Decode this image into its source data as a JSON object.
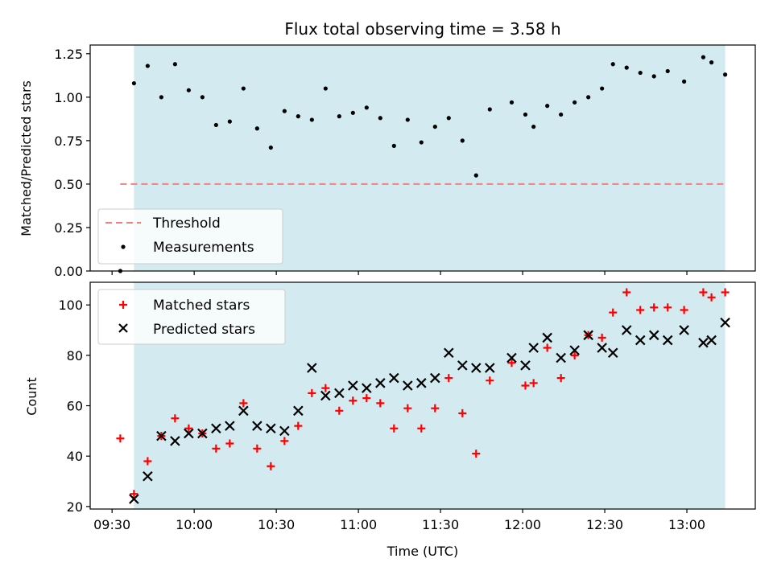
{
  "chart_data": [
    {
      "type": "scatter",
      "title": "Flux total observing time = 3.58 h",
      "xlabel": "",
      "ylabel": "Matched/Predicted stars",
      "ylim": [
        0,
        1.3
      ],
      "xlim": [
        "09:22",
        "13:25"
      ],
      "yticks": [
        "0.00",
        "0.25",
        "0.50",
        "0.75",
        "1.00",
        "1.25"
      ],
      "xticks": [
        "09:30",
        "10:00",
        "10:30",
        "11:00",
        "11:30",
        "12:00",
        "12:30",
        "13:00"
      ],
      "shaded_span": {
        "from": "09:38",
        "to": "13:14",
        "color": "#d2eaf0"
      },
      "threshold": {
        "name": "Threshold",
        "value": 0.5,
        "color": "#f08080",
        "from": "09:33",
        "to": "13:14"
      },
      "legend": [
        "Threshold",
        "Measurements"
      ],
      "legend_position": "lower left",
      "series": [
        {
          "name": "Measurements",
          "color": "#000000",
          "x": [
            "09:33",
            "09:38",
            "09:43",
            "09:48",
            "09:53",
            "09:58",
            "10:03",
            "10:08",
            "10:13",
            "10:18",
            "10:23",
            "10:28",
            "10:33",
            "10:38",
            "10:43",
            "10:48",
            "10:53",
            "10:58",
            "11:03",
            "11:08",
            "11:13",
            "11:18",
            "11:23",
            "11:28",
            "11:33",
            "11:38",
            "11:43",
            "11:48",
            "11:56",
            "12:01",
            "12:04",
            "12:09",
            "12:14",
            "12:19",
            "12:24",
            "12:29",
            "12:33",
            "12:38",
            "12:43",
            "12:48",
            "12:53",
            "12:59",
            "13:06",
            "13:09",
            "13:14"
          ],
          "y": [
            0.0,
            1.08,
            1.18,
            1.0,
            1.19,
            1.04,
            1.0,
            0.84,
            0.86,
            1.05,
            0.82,
            0.71,
            0.92,
            0.89,
            0.87,
            1.05,
            0.89,
            0.91,
            0.94,
            0.88,
            0.72,
            0.87,
            0.74,
            0.83,
            0.88,
            0.75,
            0.55,
            0.93,
            0.97,
            0.9,
            0.83,
            0.95,
            0.9,
            0.97,
            1.0,
            1.05,
            1.19,
            1.17,
            1.14,
            1.12,
            1.15,
            1.09,
            1.23,
            1.2,
            1.13
          ]
        }
      ]
    },
    {
      "type": "scatter",
      "title": "",
      "xlabel": "Time (UTC)",
      "ylabel": "Count",
      "ylim": [
        19,
        109
      ],
      "xlim": [
        "09:22",
        "13:25"
      ],
      "yticks": [
        "20",
        "40",
        "60",
        "80",
        "100"
      ],
      "xticks": [
        "09:30",
        "10:00",
        "10:30",
        "11:00",
        "11:30",
        "12:00",
        "12:30",
        "13:00"
      ],
      "shaded_span": {
        "from": "09:38",
        "to": "13:14",
        "color": "#d2eaf0"
      },
      "legend": [
        "Matched stars",
        "Predicted stars"
      ],
      "legend_position": "upper left",
      "series": [
        {
          "name": "Matched stars",
          "color": "#ff0000",
          "x": [
            "09:33",
            "09:38",
            "09:43",
            "09:48",
            "09:53",
            "09:58",
            "10:03",
            "10:08",
            "10:13",
            "10:18",
            "10:23",
            "10:28",
            "10:33",
            "10:38",
            "10:43",
            "10:48",
            "10:53",
            "10:58",
            "11:03",
            "11:08",
            "11:13",
            "11:18",
            "11:23",
            "11:28",
            "11:33",
            "11:38",
            "11:43",
            "11:48",
            "11:56",
            "12:01",
            "12:04",
            "12:09",
            "12:14",
            "12:19",
            "12:24",
            "12:29",
            "12:33",
            "12:38",
            "12:43",
            "12:48",
            "12:53",
            "12:59",
            "13:06",
            "13:09",
            "13:14"
          ],
          "y": [
            47,
            25,
            38,
            48,
            55,
            51,
            49,
            43,
            45,
            61,
            43,
            36,
            46,
            52,
            65,
            67,
            58,
            62,
            63,
            61,
            51,
            59,
            51,
            59,
            71,
            57,
            41,
            70,
            77,
            68,
            69,
            83,
            71,
            80,
            88,
            87,
            97,
            105,
            98,
            99,
            99,
            98,
            105,
            103,
            105
          ]
        },
        {
          "name": "Predicted stars",
          "color": "#000000",
          "x": [
            "09:38",
            "09:43",
            "09:48",
            "09:53",
            "09:58",
            "10:03",
            "10:08",
            "10:13",
            "10:18",
            "10:23",
            "10:28",
            "10:33",
            "10:38",
            "10:43",
            "10:48",
            "10:53",
            "10:58",
            "11:03",
            "11:08",
            "11:13",
            "11:18",
            "11:23",
            "11:28",
            "11:33",
            "11:38",
            "11:43",
            "11:48",
            "11:56",
            "12:01",
            "12:04",
            "12:09",
            "12:14",
            "12:19",
            "12:24",
            "12:29",
            "12:33",
            "12:38",
            "12:43",
            "12:48",
            "12:53",
            "12:59",
            "13:06",
            "13:09",
            "13:14"
          ],
          "y": [
            23,
            32,
            48,
            46,
            49,
            49,
            51,
            52,
            58,
            52,
            51,
            50,
            58,
            75,
            64,
            65,
            68,
            67,
            69,
            71,
            68,
            69,
            71,
            81,
            76,
            75,
            75,
            79,
            76,
            83,
            87,
            79,
            82,
            88,
            83,
            81,
            90,
            86,
            88,
            86,
            90,
            85,
            86,
            93
          ]
        }
      ]
    }
  ]
}
